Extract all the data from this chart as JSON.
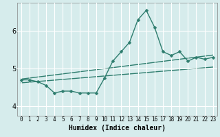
{
  "xlabel": "Humidex (Indice chaleur)",
  "x": [
    0,
    1,
    2,
    3,
    4,
    5,
    6,
    7,
    8,
    9,
    10,
    11,
    12,
    13,
    14,
    15,
    16,
    17,
    18,
    19,
    20,
    21,
    22,
    23
  ],
  "y_main": [
    4.7,
    4.7,
    4.65,
    4.55,
    4.35,
    4.4,
    4.4,
    4.35,
    4.35,
    4.35,
    4.75,
    5.2,
    5.45,
    5.7,
    6.3,
    6.55,
    6.1,
    5.45,
    5.35,
    5.45,
    5.2,
    5.3,
    5.25,
    5.3
  ],
  "line1_x": [
    0,
    23
  ],
  "line1_y": [
    4.72,
    5.36
  ],
  "line2_x": [
    0,
    23
  ],
  "line2_y": [
    4.62,
    5.04
  ],
  "ylim": [
    3.75,
    6.75
  ],
  "xlim": [
    -0.5,
    23.5
  ],
  "yticks": [
    4,
    5,
    6
  ],
  "xticks": [
    0,
    1,
    2,
    3,
    4,
    5,
    6,
    7,
    8,
    9,
    10,
    11,
    12,
    13,
    14,
    15,
    16,
    17,
    18,
    19,
    20,
    21,
    22,
    23
  ],
  "bg_color": "#d6ecec",
  "grid_color": "#ffffff",
  "line_color": "#2e7d6e",
  "line_width": 1.0,
  "marker_size": 2.5
}
